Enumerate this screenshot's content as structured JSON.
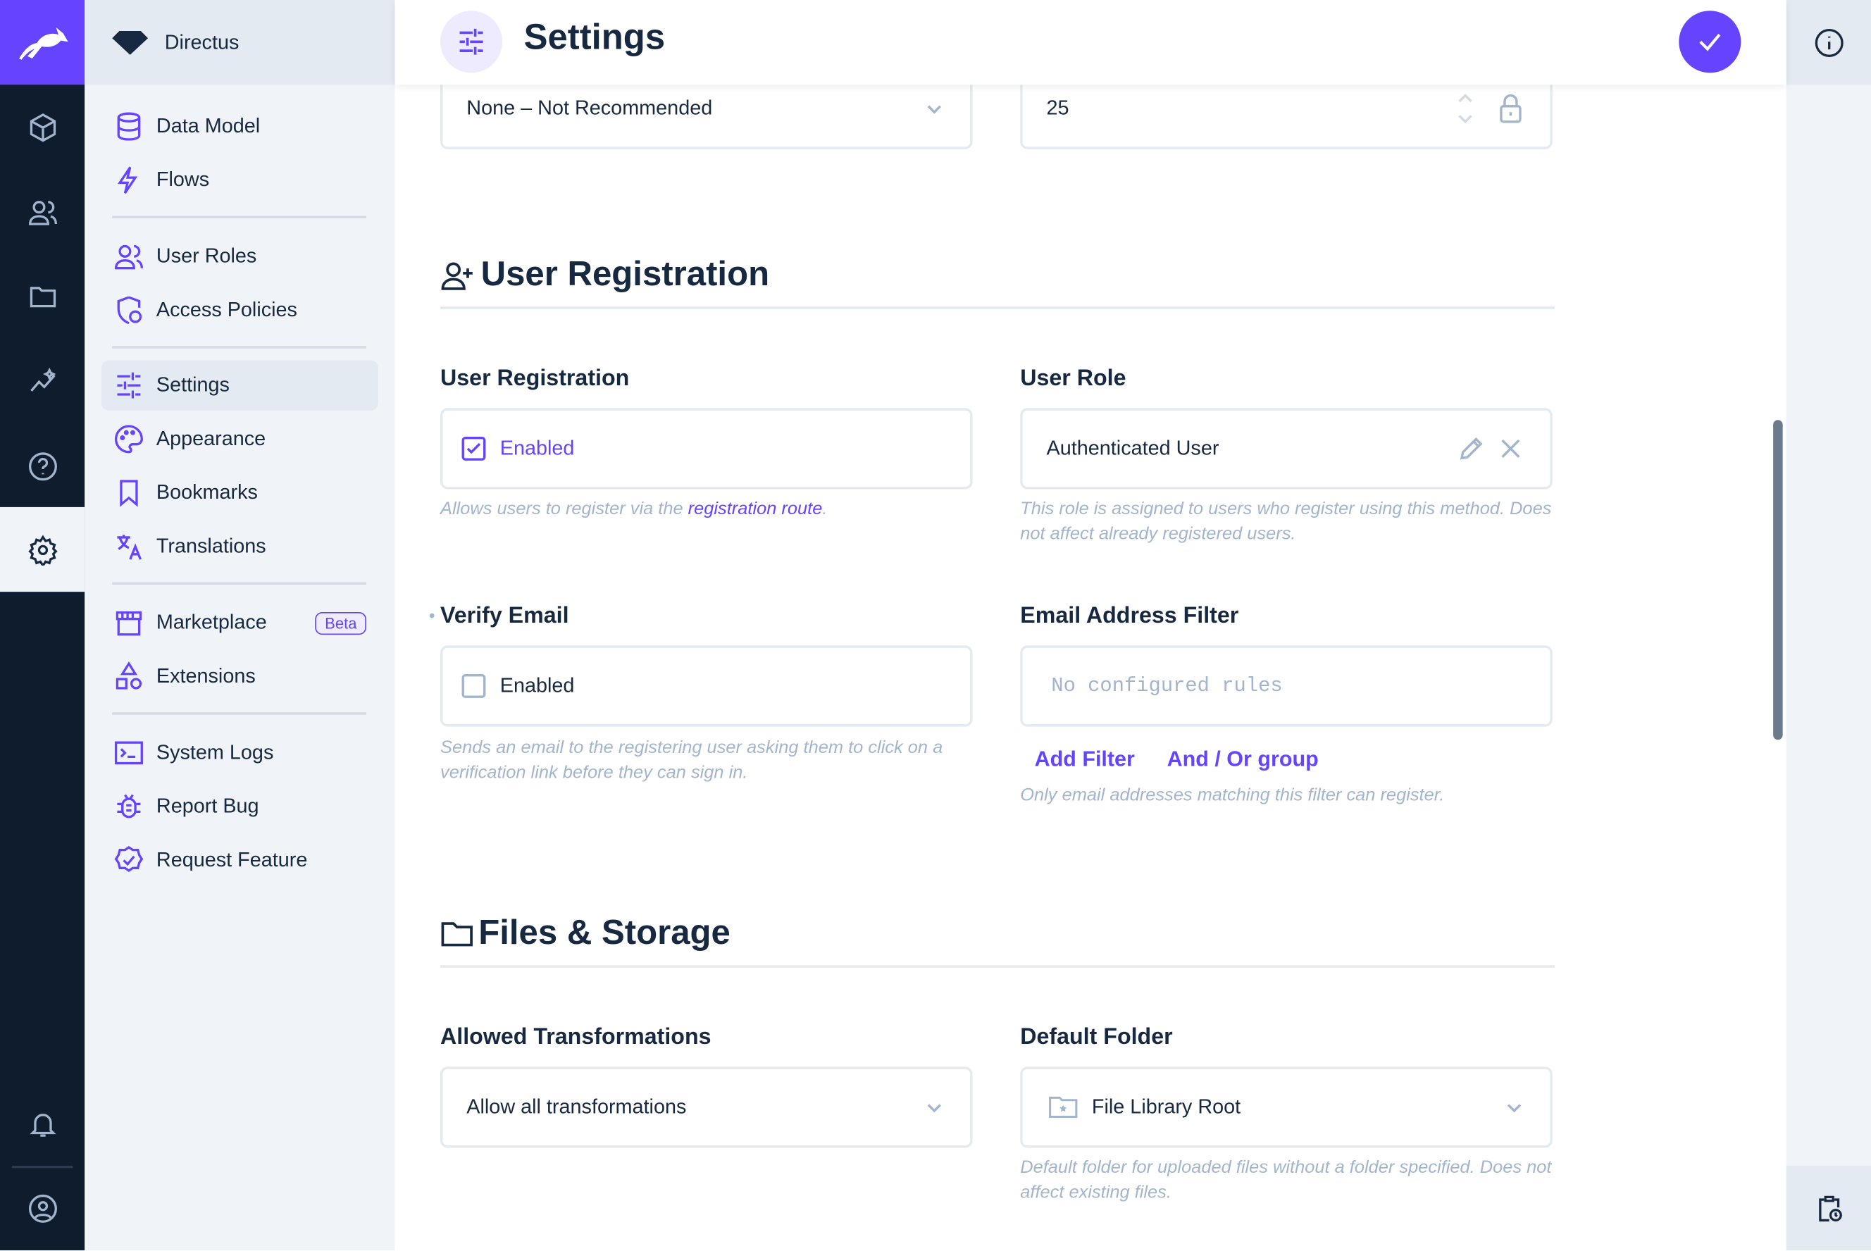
{
  "project": {
    "name": "Directus"
  },
  "header": {
    "title": "Settings",
    "save_icon": "check-icon",
    "info_icon": "info-icon"
  },
  "module_nav": [
    "content-box-icon",
    "users-icon",
    "folder-icon",
    "insights-icon",
    "help-icon",
    "settings-gear-icon",
    "bell-icon",
    "user-circle-icon"
  ],
  "sidebar": {
    "items": [
      {
        "label": "Data Model",
        "icon": "database-icon"
      },
      {
        "label": "Flows",
        "icon": "bolt-icon"
      },
      {
        "label": "User Roles",
        "icon": "users-icon"
      },
      {
        "label": "Access Policies",
        "icon": "shield-icon"
      },
      {
        "label": "Settings",
        "icon": "sliders-icon",
        "active": true
      },
      {
        "label": "Appearance",
        "icon": "palette-icon"
      },
      {
        "label": "Bookmarks",
        "icon": "bookmark-icon"
      },
      {
        "label": "Translations",
        "icon": "translate-icon"
      },
      {
        "label": "Marketplace",
        "icon": "store-icon",
        "badge": "Beta"
      },
      {
        "label": "Extensions",
        "icon": "shapes-icon"
      },
      {
        "label": "System Logs",
        "icon": "terminal-icon"
      },
      {
        "label": "Report Bug",
        "icon": "bug-icon"
      },
      {
        "label": "Request Feature",
        "icon": "verified-icon"
      }
    ]
  },
  "top_fields": {
    "left_value": "None – Not Recommended",
    "right_value": "25"
  },
  "user_registration": {
    "title": "User Registration",
    "registration": {
      "label": "User Registration",
      "value": "Enabled",
      "checked": true,
      "note_prefix": "Allows users to register via the ",
      "note_link": "registration route",
      "note_suffix": "."
    },
    "role": {
      "label": "User Role",
      "value": "Authenticated User",
      "note": "This role is assigned to users who register using this method. Does not affect already registered users."
    },
    "verify": {
      "label": "Verify Email",
      "value": "Enabled",
      "checked": false,
      "note": "Sends an email to the registering user asking them to click on a verification link before they can sign in."
    },
    "filter": {
      "label": "Email Address Filter",
      "placeholder": "No configured rules",
      "add_filter": "Add Filter",
      "add_group": "And / Or group",
      "note": "Only email addresses matching this filter can register."
    }
  },
  "files": {
    "title": "Files & Storage",
    "transformations": {
      "label": "Allowed Transformations",
      "value": "Allow all transformations"
    },
    "folder": {
      "label": "Default Folder",
      "value": "File Library Root",
      "note": "Default folder for uploaded files without a folder specified. Does not affect existing files."
    }
  },
  "colors": {
    "accent": "#6644ff",
    "nav": "#0f1c2e",
    "sidebar": "#f0f4f9"
  }
}
